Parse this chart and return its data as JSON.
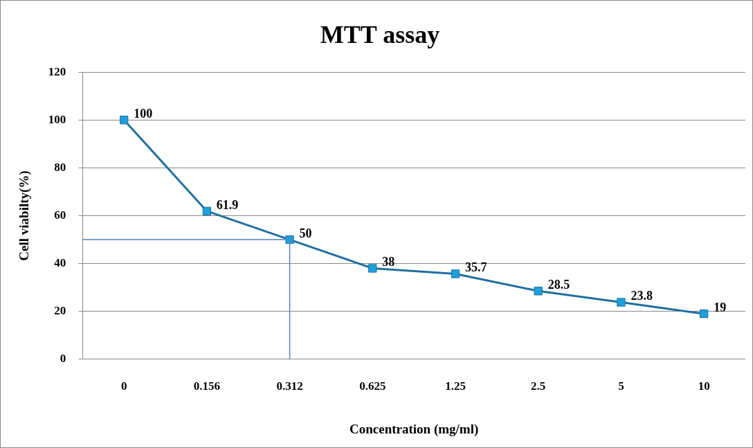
{
  "chart_data": {
    "type": "line",
    "title": "MTT assay",
    "xlabel": "Concentration (mg/ml)",
    "ylabel": "Cell viabilty(%)",
    "categories": [
      "0",
      "0.156",
      "0.312",
      "0.625",
      "1.25",
      "2.5",
      "5",
      "10"
    ],
    "series": [
      {
        "color": "#1f6f9f",
        "values": [
          100,
          61.9,
          50,
          38,
          35.7,
          28.5,
          23.8,
          19
        ]
      }
    ],
    "ylim": [
      0,
      120
    ],
    "yticks": [
      0,
      20,
      40,
      60,
      80,
      100,
      120
    ],
    "grid": "y",
    "legend": false,
    "marker": "square",
    "line_style": "solid",
    "data_labels": true,
    "ref_lines": [
      {
        "axis": "x",
        "value": "0.312",
        "color": "#4f81bd"
      },
      {
        "axis": "y",
        "value": 50,
        "color": "#4f81bd"
      }
    ]
  }
}
